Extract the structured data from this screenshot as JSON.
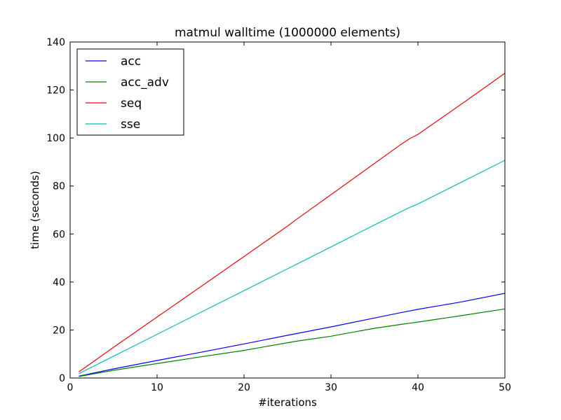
{
  "chart_data": {
    "type": "line",
    "title": "matmul walltime (1000000 elements)",
    "xlabel": "#iterations",
    "ylabel": "time (seconds)",
    "xlim": [
      0,
      50
    ],
    "ylim": [
      0,
      140
    ],
    "xticks": [
      0,
      10,
      20,
      30,
      40,
      50
    ],
    "yticks": [
      0,
      20,
      40,
      60,
      80,
      100,
      120,
      140
    ],
    "grid": false,
    "legend_position": "top-left",
    "x": [
      1,
      5,
      10,
      15,
      20,
      25,
      26,
      30,
      35,
      38,
      39,
      40,
      45,
      50
    ],
    "series": [
      {
        "name": "acc",
        "color": "#0000ff",
        "values": [
          0.8,
          3.8,
          7.3,
          10.7,
          14.2,
          17.8,
          18.5,
          21.3,
          25.0,
          27.2,
          27.9,
          28.6,
          31.7,
          35.3
        ]
      },
      {
        "name": "acc_adv",
        "color": "#008000",
        "values": [
          0.6,
          3.2,
          6.0,
          8.8,
          11.5,
          14.7,
          15.3,
          17.4,
          20.7,
          22.3,
          22.8,
          23.3,
          26.0,
          28.8
        ]
      },
      {
        "name": "seq",
        "color": "#ff0000",
        "values": [
          2.5,
          12.8,
          25.4,
          38.0,
          50.6,
          63.3,
          66.0,
          76.4,
          89.4,
          97.2,
          99.6,
          101.5,
          114.1,
          127.0
        ]
      },
      {
        "name": "sse",
        "color": "#00bfbf",
        "values": [
          1.8,
          9.1,
          18.2,
          27.3,
          36.4,
          45.5,
          47.3,
          54.6,
          63.8,
          69.2,
          71.0,
          72.5,
          81.6,
          90.7
        ]
      }
    ]
  }
}
